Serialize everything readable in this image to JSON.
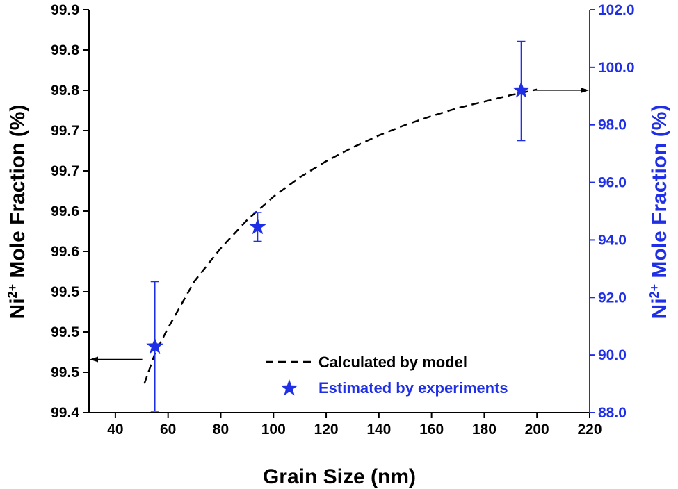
{
  "chart_data": {
    "type": "scatter",
    "xlabel": "Grain Size (nm)",
    "ylabel_left": {
      "base": "Ni",
      "sup": "2+",
      "rest": " Mole Fraction (%)"
    },
    "ylabel_right": {
      "base": "Ni",
      "sup": "2+",
      "rest": " Mole Fraction (%)"
    },
    "xlim": [
      30,
      220
    ],
    "x_ticks": [
      40,
      60,
      80,
      100,
      120,
      140,
      160,
      180,
      200,
      220
    ],
    "ylim_left": [
      99.4,
      99.9
    ],
    "y_left_ticks": [
      99.4,
      99.45,
      99.5,
      99.55,
      99.6,
      99.65,
      99.7,
      99.75,
      99.8,
      99.85,
      99.9
    ],
    "y_left_tick_labels": [
      "99.4",
      "99.5",
      "99.5",
      "99.5",
      "99.6",
      "99.6",
      "99.7",
      "99.7",
      "99.8",
      "99.8",
      "99.9"
    ],
    "ylim_right": [
      88.0,
      102.0
    ],
    "y_right_ticks": [
      88.0,
      90.0,
      92.0,
      94.0,
      96.0,
      98.0,
      100.0,
      102.0
    ],
    "y_right_tick_labels": [
      "88.0",
      "90.0",
      "92.0",
      "94.0",
      "96.0",
      "98.0",
      "100.0",
      "102.0"
    ],
    "right_axis_color": "#1f2fe6",
    "series": [
      {
        "name": "Calculated by model",
        "axis": "left",
        "style": "dashed-line",
        "color": "#000000",
        "x": [
          51,
          55,
          60,
          65,
          70,
          80,
          90,
          100,
          110,
          120,
          130,
          140,
          150,
          160,
          170,
          180,
          190,
          200
        ],
        "y": [
          99.436,
          99.473,
          99.505,
          99.534,
          99.563,
          99.604,
          99.639,
          99.668,
          99.692,
          99.712,
          99.729,
          99.744,
          99.757,
          99.768,
          99.778,
          99.786,
          99.794,
          99.801
        ]
      },
      {
        "name": "Estimated by experiments",
        "axis": "right",
        "style": "star-marker",
        "color": "#1f2fe6",
        "x": [
          55,
          94,
          194
        ],
        "y": [
          90.3,
          94.45,
          99.2
        ],
        "yerr_low": [
          88.05,
          93.95,
          97.45
        ],
        "yerr_high": [
          92.55,
          94.95,
          100.9
        ]
      }
    ],
    "annotations": [
      {
        "kind": "arrow",
        "points_to": "left-axis",
        "from": [
          51,
          99.466
        ]
      },
      {
        "kind": "arrow",
        "points_to": "right-axis",
        "from": [
          196,
          99.2
        ]
      }
    ],
    "legend": {
      "position": "bottom-right",
      "items": [
        "Calculated by model",
        "Estimated by experiments"
      ]
    },
    "grid": false
  }
}
